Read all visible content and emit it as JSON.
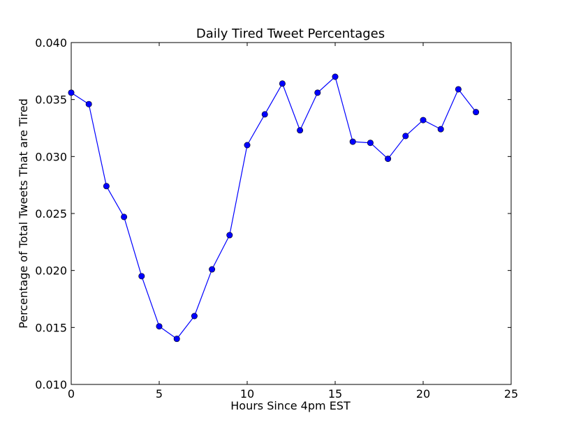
{
  "chart_data": {
    "type": "line",
    "title": "Daily Tired Tweet Percentages",
    "xlabel": "Hours Since 4pm EST",
    "ylabel": "Percentage of Total Tweets That are Tired",
    "xlim": [
      0,
      25
    ],
    "ylim": [
      0.01,
      0.04
    ],
    "x_ticks": [
      0,
      5,
      10,
      15,
      20,
      25
    ],
    "x_tick_labels": [
      "0",
      "5",
      "10",
      "15",
      "20",
      "25"
    ],
    "y_ticks": [
      0.01,
      0.015,
      0.02,
      0.025,
      0.03,
      0.035,
      0.04
    ],
    "y_tick_labels": [
      "0.010",
      "0.015",
      "0.020",
      "0.025",
      "0.030",
      "0.035",
      "0.040"
    ],
    "grid": false,
    "series": [
      {
        "color": "#0000ff",
        "marker": "circle",
        "x": [
          0,
          1,
          2,
          3,
          4,
          5,
          6,
          7,
          8,
          9,
          10,
          11,
          12,
          13,
          14,
          15,
          16,
          17,
          18,
          19,
          20,
          21,
          22,
          23
        ],
        "y": [
          0.0356,
          0.0346,
          0.0274,
          0.0247,
          0.0195,
          0.0151,
          0.014,
          0.016,
          0.0201,
          0.0231,
          0.031,
          0.0337,
          0.0364,
          0.0323,
          0.0356,
          0.037,
          0.0313,
          0.0312,
          0.0298,
          0.0318,
          0.0332,
          0.0324,
          0.0359,
          0.0339
        ]
      }
    ]
  }
}
